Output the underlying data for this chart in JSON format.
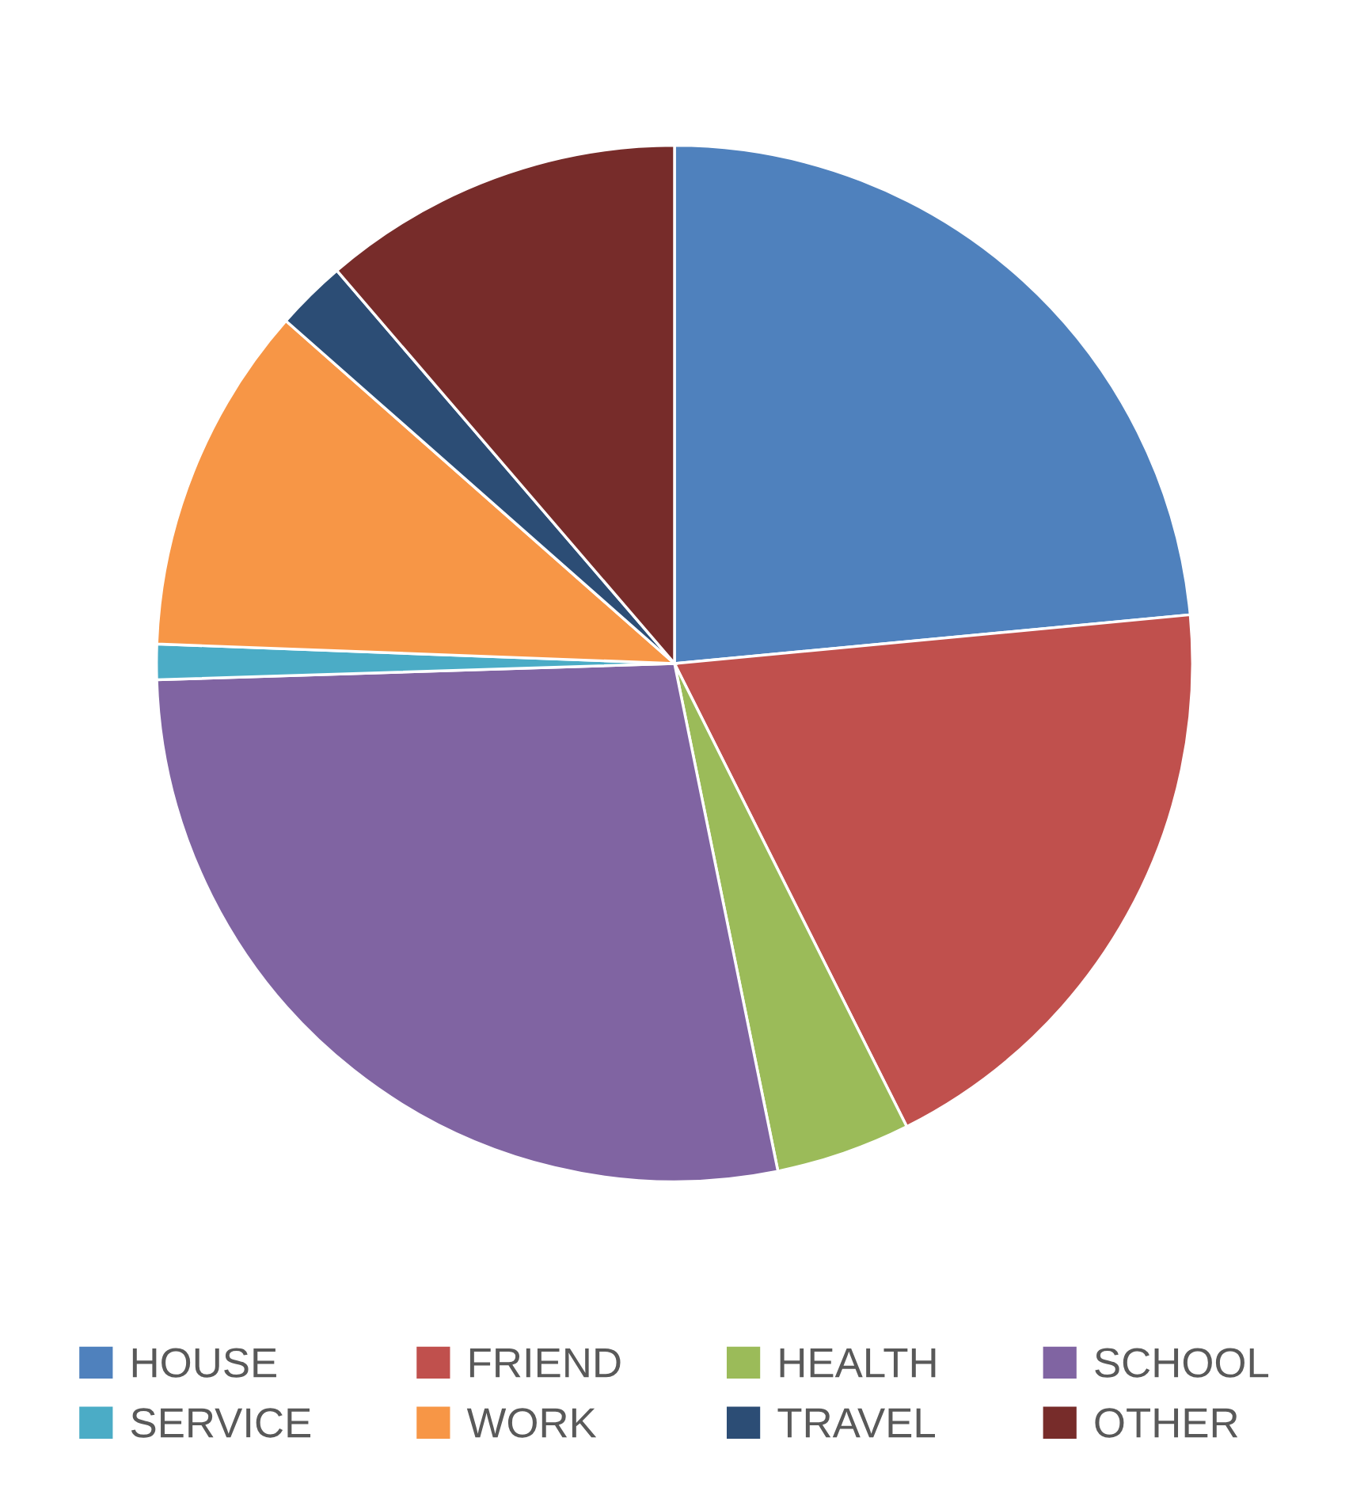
{
  "chart_data": {
    "type": "pie",
    "categories": [
      "HOUSE",
      "FRIEND",
      "HEALTH",
      "SCHOOL",
      "SERVICE",
      "WORK",
      "TRAVEL",
      "OTHER"
    ],
    "values": [
      23.5,
      19.1,
      4.2,
      27.7,
      1.1,
      10.9,
      2.2,
      11.3
    ],
    "colors": [
      "#4f81bd",
      "#c0504d",
      "#9bbb59",
      "#8064a2",
      "#4bacc6",
      "#f79646",
      "#2c4d75",
      "#772c2a"
    ],
    "legend": "bottom"
  }
}
